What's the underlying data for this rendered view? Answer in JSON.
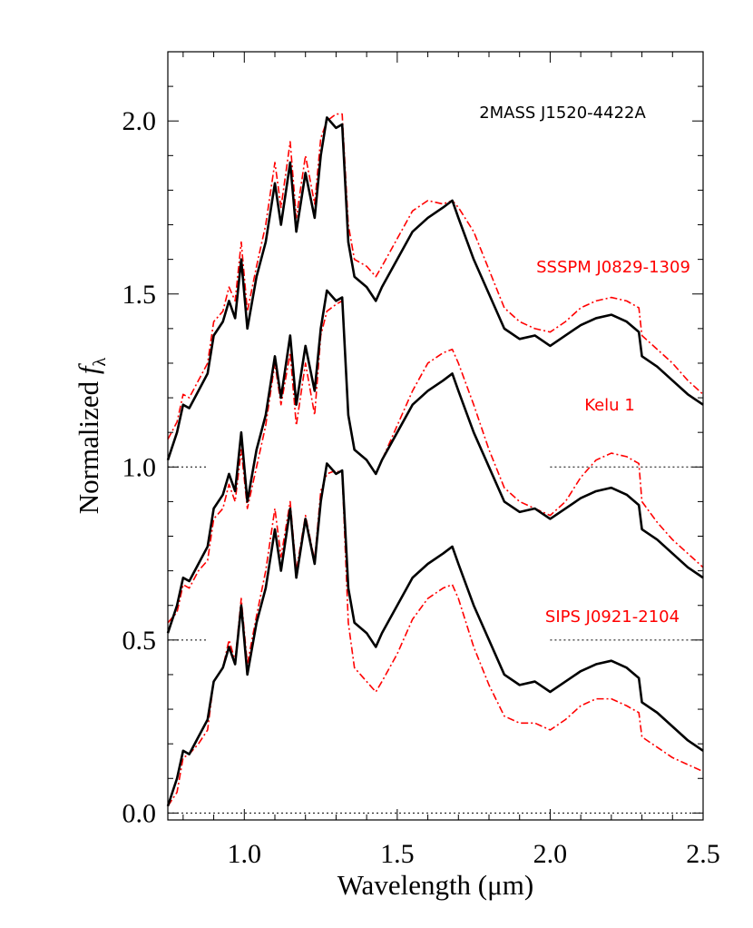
{
  "chart_data": {
    "type": "line",
    "xlabel": "Wavelength (μm)",
    "ylabel": "Normalized",
    "ylabel_symbol": "f",
    "ylabel_subscript": "λ",
    "xlim": [
      0.75,
      2.5
    ],
    "ylim": [
      -0.02,
      2.2
    ],
    "xticks": [
      {
        "value": 1.0,
        "label": "1.0"
      },
      1.5,
      {
        "value": 2.0,
        "label": "2.0"
      },
      2.5
    ],
    "yticks": [
      {
        "value": 0,
        "label": "0.0"
      },
      0.5,
      {
        "value": 1.0,
        "label": "1.0"
      },
      1.5,
      {
        "value": 2.0,
        "label": "2.0"
      }
    ],
    "xminorticks": [
      0.8,
      0.9,
      1.1,
      1.2,
      1.3,
      1.4,
      1.6,
      1.7,
      1.8,
      1.9,
      2.1,
      2.2,
      2.3,
      2.4
    ],
    "yminorticks": [
      0.1,
      0.2,
      0.3,
      0.4,
      0.6,
      0.7,
      0.8,
      0.9,
      1.1,
      1.2,
      1.3,
      1.4,
      1.6,
      1.7,
      1.8,
      1.9,
      2.1
    ],
    "reference_lines": [
      {
        "y": 0,
        "x": [
          0.75,
          2.5
        ]
      },
      {
        "y": 0.5,
        "x": [
          0.75,
          0.88
        ]
      },
      {
        "y": 0.5,
        "x": [
          2.0,
          2.5
        ]
      },
      {
        "y": 1.0,
        "x": [
          0.75,
          0.88
        ]
      },
      {
        "y": 1.0,
        "x": [
          2.0,
          2.5
        ]
      }
    ],
    "x": [
      0.75,
      0.78,
      0.8,
      0.82,
      0.85,
      0.88,
      0.9,
      0.93,
      0.95,
      0.97,
      0.99,
      1.01,
      1.04,
      1.07,
      1.1,
      1.12,
      1.15,
      1.17,
      1.2,
      1.23,
      1.25,
      1.27,
      1.3,
      1.32,
      1.34,
      1.36,
      1.4,
      1.43,
      1.45,
      1.5,
      1.55,
      1.6,
      1.65,
      1.68,
      1.7,
      1.75,
      1.8,
      1.85,
      1.9,
      1.95,
      2.0,
      2.05,
      2.1,
      2.15,
      2.2,
      2.25,
      2.29,
      2.3,
      2.35,
      2.4,
      2.45,
      2.5
    ],
    "series": [
      {
        "name": "SSSPM J0829-1309",
        "color": "#ff0000",
        "dash": "dashdot",
        "values": [
          1.08,
          1.13,
          1.21,
          1.2,
          1.25,
          1.3,
          1.42,
          1.45,
          1.52,
          1.48,
          1.65,
          1.45,
          1.58,
          1.7,
          1.88,
          1.75,
          1.94,
          1.72,
          1.9,
          1.76,
          1.95,
          2.0,
          2.02,
          2.02,
          1.7,
          1.6,
          1.58,
          1.55,
          1.58,
          1.66,
          1.74,
          1.77,
          1.76,
          1.77,
          1.75,
          1.68,
          1.57,
          1.46,
          1.42,
          1.4,
          1.39,
          1.42,
          1.46,
          1.48,
          1.49,
          1.48,
          1.46,
          1.38,
          1.34,
          1.3,
          1.25,
          1.21
        ]
      },
      {
        "name": "Kelu 1",
        "color": "#ff0000",
        "dash": "dashdot",
        "values": [
          0.55,
          0.58,
          0.66,
          0.65,
          0.7,
          0.73,
          0.85,
          0.88,
          0.95,
          0.9,
          1.05,
          0.88,
          1.0,
          1.12,
          1.3,
          1.18,
          1.33,
          1.12,
          1.3,
          1.15,
          1.38,
          1.45,
          1.47,
          1.48,
          1.15,
          1.05,
          1.02,
          0.98,
          1.02,
          1.12,
          1.22,
          1.3,
          1.33,
          1.34,
          1.3,
          1.18,
          1.05,
          0.94,
          0.9,
          0.88,
          0.86,
          0.9,
          0.97,
          1.02,
          1.04,
          1.03,
          1.01,
          0.9,
          0.84,
          0.79,
          0.75,
          0.71
        ]
      },
      {
        "name": "SIPS J0921-2104",
        "color": "#ff0000",
        "dash": "dashdot",
        "values": [
          0.02,
          0.06,
          0.16,
          0.17,
          0.2,
          0.24,
          0.38,
          0.42,
          0.5,
          0.44,
          0.62,
          0.43,
          0.57,
          0.7,
          0.88,
          0.74,
          0.9,
          0.7,
          0.86,
          0.73,
          0.93,
          0.98,
          0.99,
          0.98,
          0.55,
          0.42,
          0.38,
          0.35,
          0.38,
          0.46,
          0.56,
          0.62,
          0.65,
          0.66,
          0.62,
          0.48,
          0.37,
          0.28,
          0.26,
          0.26,
          0.24,
          0.27,
          0.31,
          0.33,
          0.33,
          0.31,
          0.29,
          0.22,
          0.19,
          0.16,
          0.14,
          0.12
        ]
      },
      {
        "name": "2MASS J1520-4422A",
        "color": "#000000",
        "dash": "solid",
        "values": [
          1.02,
          1.1,
          1.18,
          1.17,
          1.22,
          1.27,
          1.38,
          1.42,
          1.48,
          1.43,
          1.6,
          1.4,
          1.55,
          1.65,
          1.82,
          1.7,
          1.88,
          1.68,
          1.85,
          1.72,
          1.9,
          2.01,
          1.98,
          1.99,
          1.65,
          1.55,
          1.52,
          1.48,
          1.52,
          1.6,
          1.68,
          1.72,
          1.75,
          1.77,
          1.72,
          1.6,
          1.5,
          1.4,
          1.37,
          1.38,
          1.35,
          1.38,
          1.41,
          1.43,
          1.44,
          1.42,
          1.39,
          1.32,
          1.29,
          1.25,
          1.21,
          1.18
        ]
      },
      {
        "color": "#000000",
        "dash": "solid",
        "values": [
          0.52,
          0.6,
          0.68,
          0.67,
          0.72,
          0.77,
          0.88,
          0.92,
          0.98,
          0.93,
          1.1,
          0.9,
          1.05,
          1.15,
          1.32,
          1.2,
          1.38,
          1.18,
          1.35,
          1.22,
          1.4,
          1.51,
          1.48,
          1.49,
          1.15,
          1.05,
          1.02,
          0.98,
          1.02,
          1.1,
          1.18,
          1.22,
          1.25,
          1.27,
          1.22,
          1.1,
          1.0,
          0.9,
          0.87,
          0.88,
          0.85,
          0.88,
          0.91,
          0.93,
          0.94,
          0.92,
          0.89,
          0.82,
          0.79,
          0.75,
          0.71,
          0.68
        ]
      },
      {
        "color": "#000000",
        "dash": "solid",
        "values": [
          0.02,
          0.1,
          0.18,
          0.17,
          0.22,
          0.27,
          0.38,
          0.42,
          0.48,
          0.43,
          0.6,
          0.4,
          0.55,
          0.65,
          0.82,
          0.7,
          0.88,
          0.68,
          0.85,
          0.72,
          0.9,
          1.01,
          0.98,
          0.99,
          0.65,
          0.55,
          0.52,
          0.48,
          0.52,
          0.6,
          0.68,
          0.72,
          0.75,
          0.77,
          0.72,
          0.6,
          0.5,
          0.4,
          0.37,
          0.38,
          0.35,
          0.38,
          0.41,
          0.43,
          0.44,
          0.42,
          0.39,
          0.32,
          0.29,
          0.25,
          0.21,
          0.18
        ]
      }
    ]
  }
}
